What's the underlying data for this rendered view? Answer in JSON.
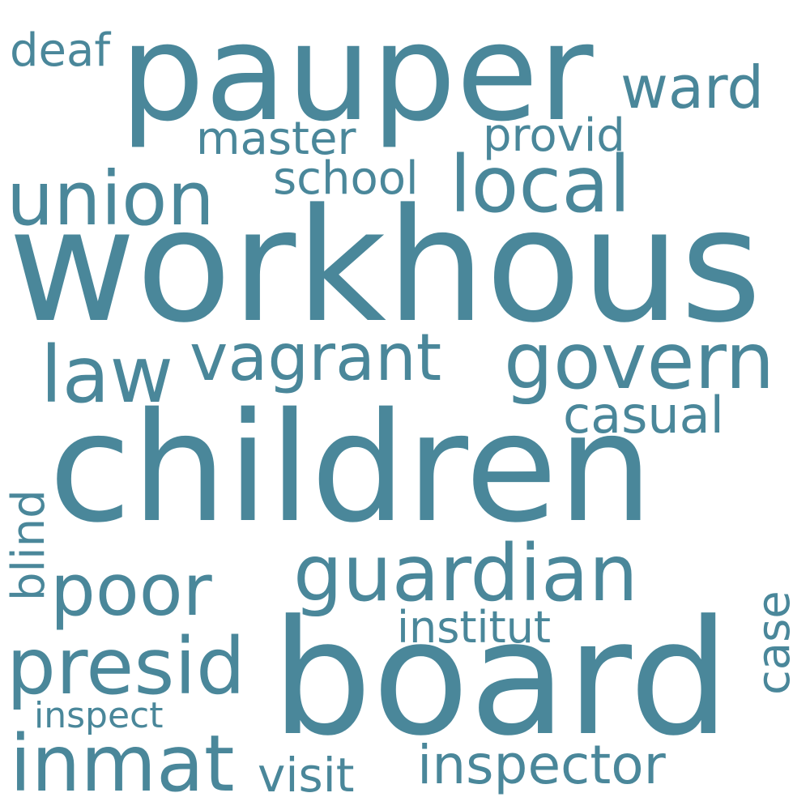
{
  "color": "#4a879a",
  "words": {
    "pauper": "pauper",
    "workhous": "workhous",
    "children": "children",
    "board": "board",
    "guardian": "guardian",
    "union": "union",
    "local": "local",
    "govern": "govern",
    "vagrant": "vagrant",
    "law": "law",
    "poor": "poor",
    "presid": "presid",
    "inmat": "inmat",
    "ward": "ward",
    "deaf": "deaf",
    "master": "master",
    "provid": "provid",
    "school": "school",
    "casual": "casual",
    "blind": "blind",
    "institut": "institut",
    "case": "case",
    "inspect": "inspect",
    "visit": "visit",
    "inspector": "inspector"
  }
}
